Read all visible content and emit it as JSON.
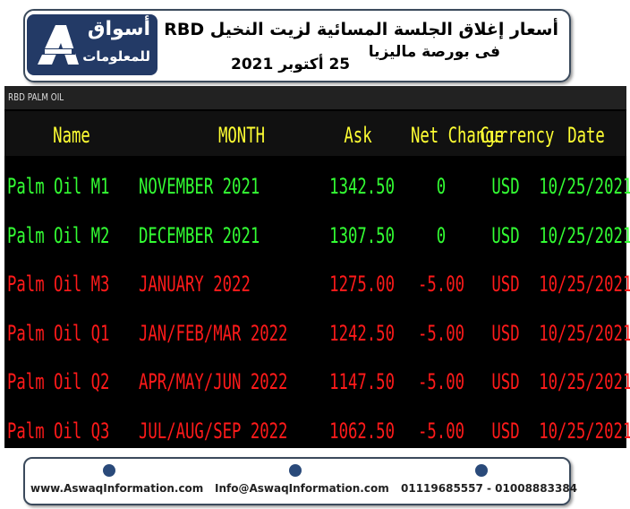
{
  "header": {
    "logo": {
      "line1": "أسواق",
      "line2": "للمعلومات"
    },
    "title": "أسعار  إغلاق الجلسة المسائية لزيت النخيل RBD",
    "subtitle1": "فى بورصة ماليزيا",
    "subtitle2": "25 أكتوبر 2021"
  },
  "table": {
    "label": "RBD PALM OIL",
    "header_color": "#ffff33",
    "columns": [
      "Name",
      "MONTH",
      "Ask",
      "Net Change",
      "Currency",
      "Date"
    ],
    "rows": [
      {
        "color": "#33ff33",
        "cells": [
          "Palm Oil M1",
          "NOVEMBER 2021",
          "1342.50",
          "0",
          "USD",
          "10/25/2021"
        ]
      },
      {
        "color": "#33ff33",
        "cells": [
          "Palm Oil M2",
          "DECEMBER 2021",
          "1307.50",
          "0",
          "USD",
          "10/25/2021"
        ]
      },
      {
        "color": "#ff1a1a",
        "cells": [
          "Palm Oil M3",
          "JANUARY 2022",
          "1275.00",
          "-5.00",
          "USD",
          "10/25/2021"
        ]
      },
      {
        "color": "#ff1a1a",
        "cells": [
          "Palm Oil Q1",
          "JAN/FEB/MAR 2022",
          "1242.50",
          "-5.00",
          "USD",
          "10/25/2021"
        ]
      },
      {
        "color": "#ff1a1a",
        "cells": [
          "Palm Oil Q2",
          "APR/MAY/JUN 2022",
          "1147.50",
          "-5.00",
          "USD",
          "10/25/2021"
        ]
      },
      {
        "color": "#ff1a1a",
        "cells": [
          "Palm Oil Q3",
          "JUL/AUG/SEP 2022",
          "1062.50",
          "-5.00",
          "USD",
          "10/25/2021"
        ]
      }
    ]
  },
  "footer": {
    "website": "www.AswaqInformation.com",
    "email": "Info@AswaqInformation.com",
    "phone": "01119685557 - 01008883384"
  }
}
